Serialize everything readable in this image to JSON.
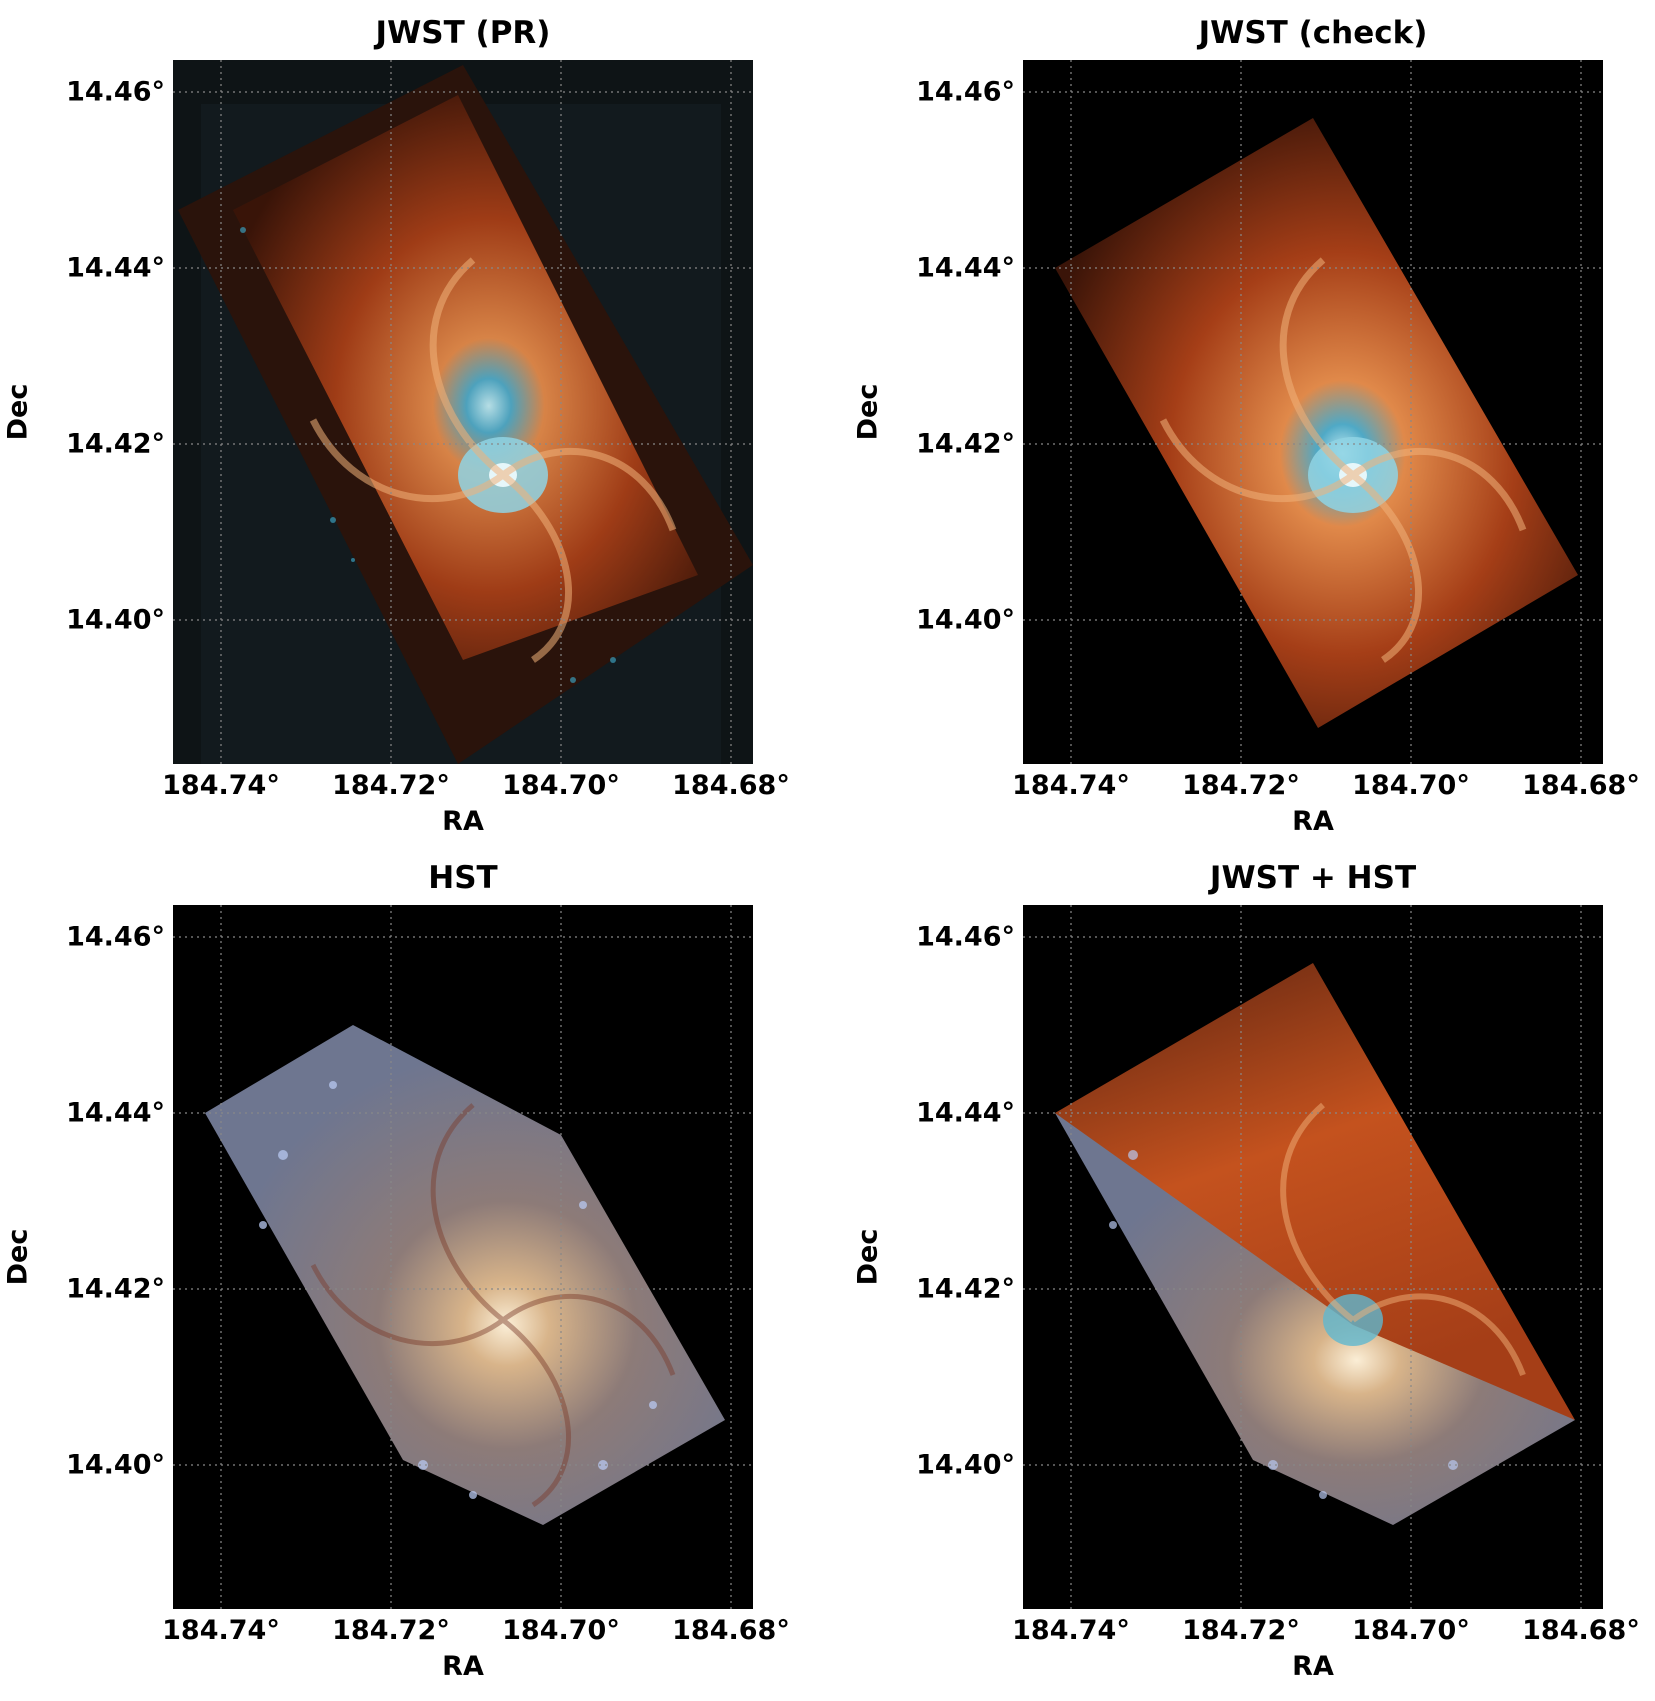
{
  "figure": {
    "panels": [
      {
        "title": "JWST (PR)",
        "image": "jwst-pr",
        "xlabel": "RA",
        "ylabel": "Dec"
      },
      {
        "title": "JWST (check)",
        "image": "jwst-check",
        "xlabel": "RA",
        "ylabel": "Dec"
      },
      {
        "title": "HST",
        "image": "hst",
        "xlabel": "RA",
        "ylabel": "Dec"
      },
      {
        "title": "JWST + HST",
        "image": "jwst-hst",
        "xlabel": "RA",
        "ylabel": "Dec"
      }
    ],
    "ra_ticks": [
      "184.74°",
      "184.72°",
      "184.70°",
      "184.68°"
    ],
    "dec_ticks": [
      "14.46°",
      "14.44°",
      "14.42°",
      "14.40°"
    ],
    "grid": "dotted",
    "colors": {
      "jwst_arms": "#c4521e",
      "jwst_core": "#5fb8cf",
      "hst_body": "#8a8f9e",
      "hst_core": "#f2dcb8",
      "background": "#000000"
    }
  }
}
